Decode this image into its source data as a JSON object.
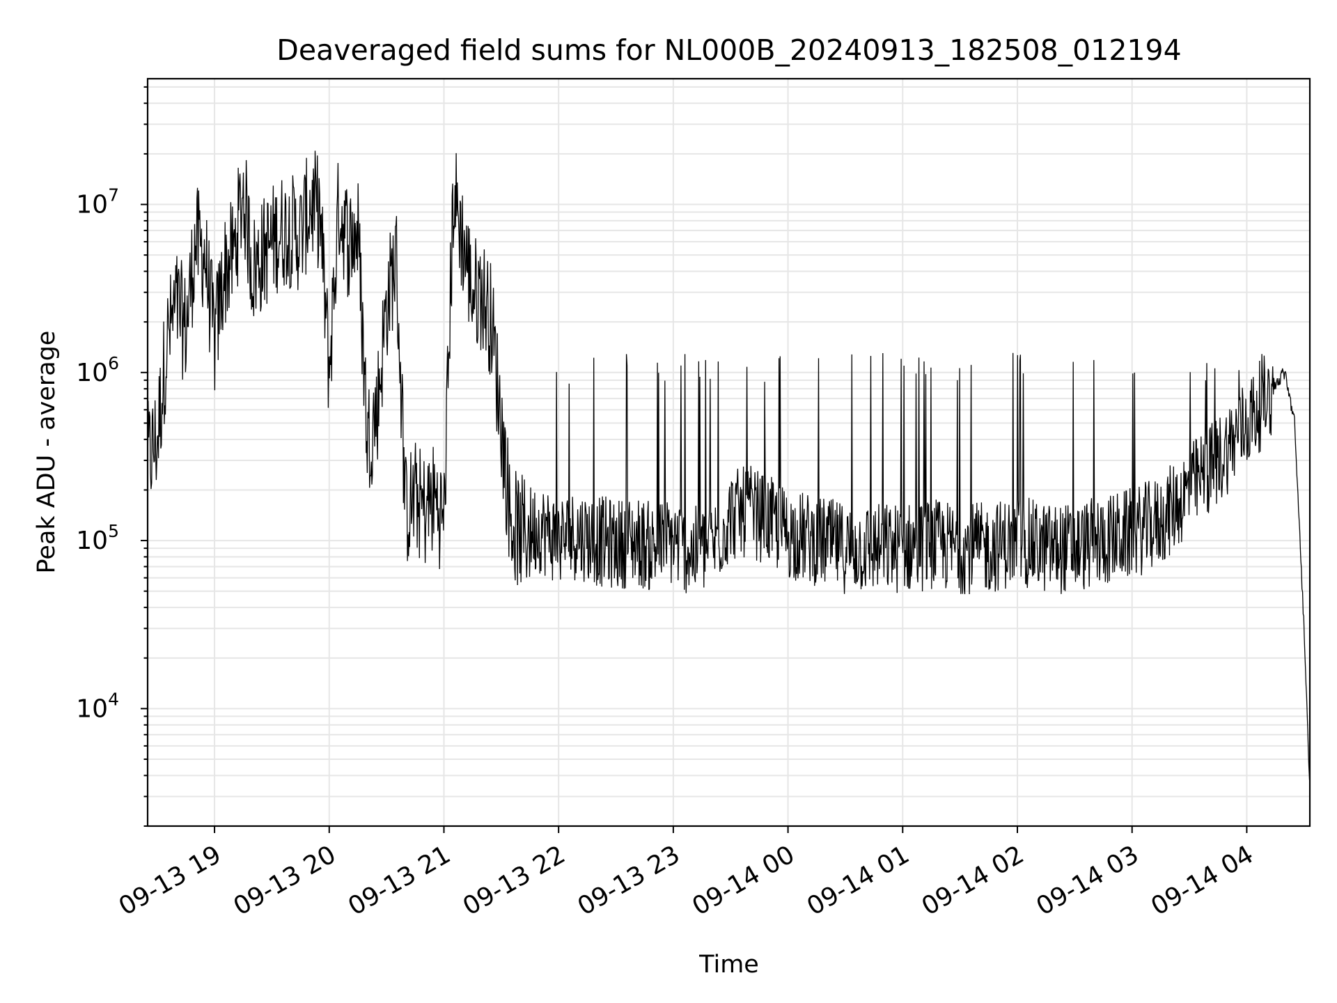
{
  "chart_data": {
    "type": "line",
    "title": "Deaveraged field sums for NL000B_20240913_182508_012194",
    "xlabel": "Time",
    "ylabel": "Peak ADU - average",
    "yscale": "log",
    "xlim": [
      "09-13 18:25",
      "09-14 04:33"
    ],
    "ylim": [
      2000,
      56000000
    ],
    "x_ticks": [
      "09-13 19",
      "09-13 20",
      "09-13 21",
      "09-13 22",
      "09-13 23",
      "09-14 00",
      "09-14 01",
      "09-14 02",
      "09-14 03",
      "09-14 04"
    ],
    "y_ticks": [
      {
        "base": "10",
        "exp": "4",
        "value": 10000
      },
      {
        "base": "10",
        "exp": "5",
        "value": 100000
      },
      {
        "base": "10",
        "exp": "6",
        "value": 1000000
      },
      {
        "base": "10",
        "exp": "7",
        "value": 10000000
      }
    ],
    "grid": true,
    "line_color": "#000000",
    "grid_color": "#e6e6e6",
    "series": [
      {
        "time_format": "MM-DD HH:MM",
        "x": [
          "09-13 18:25",
          "09-13 18:30",
          "09-13 18:35",
          "09-13 18:40",
          "09-13 18:45",
          "09-13 18:50",
          "09-13 18:55",
          "09-13 19:00",
          "09-13 19:05",
          "09-13 19:10",
          "09-13 19:15",
          "09-13 19:20",
          "09-13 19:25",
          "09-13 19:30",
          "09-13 19:35",
          "09-13 19:40",
          "09-13 19:45",
          "09-13 19:50",
          "09-13 19:55",
          "09-13 20:00",
          "09-13 20:05",
          "09-13 20:10",
          "09-13 20:15",
          "09-13 20:20",
          "09-13 20:25",
          "09-13 20:30",
          "09-13 20:35",
          "09-13 20:40",
          "09-13 20:45",
          "09-13 20:50",
          "09-13 20:55",
          "09-13 21:00",
          "09-13 21:05",
          "09-13 21:10",
          "09-13 21:15",
          "09-13 21:20",
          "09-13 21:25",
          "09-13 21:30",
          "09-13 21:35",
          "09-13 21:40",
          "09-13 21:50",
          "09-13 22:00",
          "09-13 22:10",
          "09-13 22:20",
          "09-13 22:30",
          "09-13 22:40",
          "09-13 22:50",
          "09-13 23:00",
          "09-13 23:10",
          "09-13 23:20",
          "09-13 23:30",
          "09-13 23:40",
          "09-13 23:50",
          "09-14 00:00",
          "09-14 00:15",
          "09-14 00:30",
          "09-14 00:45",
          "09-14 01:00",
          "09-14 01:15",
          "09-14 01:30",
          "09-14 01:45",
          "09-14 02:00",
          "09-14 02:15",
          "09-14 02:30",
          "09-14 02:45",
          "09-14 03:00",
          "09-14 03:15",
          "09-14 03:30",
          "09-14 03:45",
          "09-14 04:00",
          "09-14 04:10",
          "09-14 04:20",
          "09-14 04:25",
          "09-14 04:30",
          "09-14 04:33"
        ],
        "values": [
          300000,
          400000,
          1500000,
          2500000,
          1800000,
          6000000,
          5000000,
          1500000,
          4000000,
          5000000,
          12000000,
          4000000,
          5000000,
          6000000,
          7000000,
          7000000,
          6500000,
          10000000,
          9000000,
          1000000,
          10000000,
          6000000,
          7000000,
          400000,
          600000,
          2500000,
          5000000,
          150000,
          180000,
          150000,
          180000,
          130000,
          12000000,
          6000000,
          3000000,
          3000000,
          2000000,
          500000,
          130000,
          110000,
          120000,
          100000,
          110000,
          100000,
          95000,
          100000,
          90000,
          100000,
          85000,
          90000,
          140000,
          150000,
          130000,
          110000,
          100000,
          90000,
          90000,
          90000,
          95000,
          90000,
          90000,
          100000,
          90000,
          90000,
          100000,
          110000,
          130000,
          200000,
          300000,
          500000,
          700000,
          1000000,
          500000,
          30000,
          3000
        ]
      }
    ]
  }
}
